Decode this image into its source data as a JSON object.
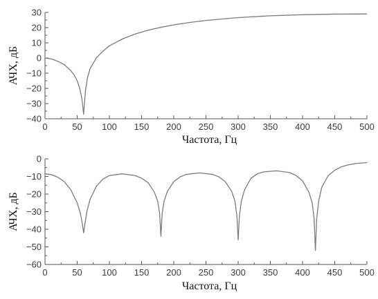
{
  "chart_data": [
    {
      "type": "line",
      "title": "",
      "xlabel": "Частота, Гц",
      "ylabel": "АЧХ, дБ",
      "xlim": [
        0,
        500
      ],
      "ylim": [
        -40,
        30
      ],
      "xticks": [
        0,
        50,
        100,
        150,
        200,
        250,
        300,
        350,
        400,
        450,
        500
      ],
      "yticks": [
        -40,
        -30,
        -20,
        -10,
        0,
        10,
        20,
        30
      ],
      "grid": false,
      "series": [
        {
          "color": "#7a7a7a",
          "x": [
            0,
            10,
            20,
            30,
            40,
            45,
            50,
            54,
            57,
            59,
            60,
            61,
            63,
            66,
            70,
            80,
            90,
            100,
            120,
            140,
            160,
            180,
            200,
            225,
            250,
            275,
            300,
            350,
            400,
            450,
            500
          ],
          "y": [
            0,
            -0.6,
            -2.2,
            -4.4,
            -8.3,
            -11,
            -15,
            -20,
            -26,
            -33,
            -37,
            -31,
            -21,
            -13,
            -7,
            0.2,
            4.5,
            8,
            12.5,
            15.8,
            18.3,
            20.2,
            21.8,
            23.4,
            24.7,
            25.7,
            26.6,
            27.8,
            28.5,
            28.9,
            29
          ]
        }
      ]
    },
    {
      "type": "line",
      "title": "",
      "xlabel": "Частота, Гц",
      "ylabel": "АЧХ, дБ",
      "xlim": [
        0,
        500
      ],
      "ylim": [
        -60,
        0
      ],
      "xticks": [
        0,
        50,
        100,
        150,
        200,
        250,
        300,
        350,
        400,
        450,
        500
      ],
      "yticks": [
        -60,
        -50,
        -40,
        -30,
        -20,
        -10,
        0
      ],
      "grid": false,
      "series": [
        {
          "color": "#7a7a7a",
          "notch_frequencies": [
            60,
            180,
            300,
            420
          ],
          "notch_depths": [
            -42,
            -44,
            -46,
            -52
          ],
          "x": [
            0,
            10,
            20,
            30,
            40,
            50,
            55,
            58,
            60,
            62,
            65,
            70,
            80,
            90,
            100,
            120,
            140,
            150,
            160,
            170,
            175,
            178,
            180,
            182,
            185,
            190,
            200,
            210,
            220,
            240,
            260,
            270,
            280,
            290,
            295,
            298,
            300,
            302,
            305,
            310,
            320,
            330,
            340,
            360,
            380,
            390,
            400,
            410,
            415,
            418,
            420,
            422,
            425,
            430,
            440,
            450,
            460,
            470,
            480,
            490,
            500
          ],
          "y": [
            -8.5,
            -9,
            -10.5,
            -13,
            -17.5,
            -25,
            -31,
            -37,
            -42,
            -37,
            -30,
            -23,
            -15.5,
            -11.5,
            -9.5,
            -8.5,
            -9.5,
            -11,
            -13.5,
            -19,
            -24,
            -31,
            -44,
            -31,
            -24,
            -18.5,
            -13,
            -10.2,
            -8.8,
            -8,
            -8.8,
            -10.2,
            -13,
            -18.5,
            -24,
            -32,
            -46,
            -32,
            -24,
            -17.5,
            -11,
            -8.5,
            -7.4,
            -6.8,
            -7.8,
            -9.5,
            -12.5,
            -19,
            -25,
            -34,
            -52,
            -34,
            -24,
            -16,
            -9.5,
            -6.5,
            -4.6,
            -3.5,
            -2.8,
            -2.4,
            -2.2
          ]
        }
      ]
    }
  ]
}
